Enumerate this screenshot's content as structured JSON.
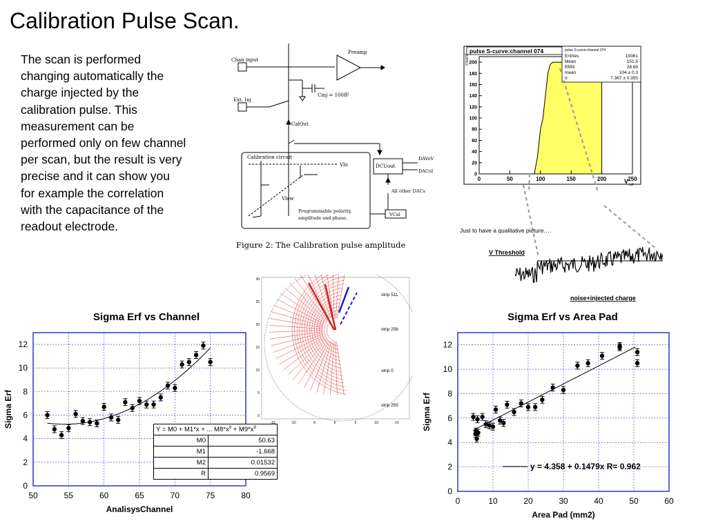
{
  "slide": {
    "title": "Calibration Pulse Scan.",
    "body": "The scan is performed changing automatically the charge injected by the calibration pulse. This measurement can be performed only on few channel per scan, but the result is very precise and it can show you for example the correlation with the capacitance of the readout electrode."
  },
  "circuit": {
    "chan_input": "Chan input",
    "preamp": "Preamp",
    "cinj": "Cinj = 100fF",
    "ext_inj": "Ext. Inj",
    "calout": "CalOut",
    "calibration_circuit": "Calibration circuit",
    "vhi": "Vhi",
    "vlow": "Vlow",
    "programmable": "Programmable polarity,",
    "amplitude_phase": "amplitude and phase.",
    "dcuout": "DCUout",
    "davov": "DAVoV",
    "dacol": "DACoI",
    "all_other_dacs": "All other DACs",
    "vcal": "VCal",
    "caption": "Figure 2: The Calibration pulse amplitude"
  },
  "scurve": {
    "title": "pulse S-curve:channel 074",
    "stats_title": "pulse S-curve:channel 074",
    "stats": [
      {
        "label": "Entries",
        "value": "19361"
      },
      {
        "label": "Mean",
        "value": "151.5"
      },
      {
        "label": "RMS",
        "value": "28.69"
      },
      {
        "label": "mean",
        "value": "104 ± 0.3"
      },
      {
        "label": "σ",
        "value": "7.367 ± 0.355"
      }
    ],
    "ylabel": "count",
    "xlabel": "V",
    "xlabel_sub": "cal",
    "x_ticks": [
      "0",
      "50",
      "100",
      "150",
      "200",
      "250"
    ],
    "y_ticks": [
      "0",
      "20",
      "40",
      "60",
      "80",
      "100",
      "120",
      "140",
      "160",
      "180",
      "200"
    ],
    "note": "Just to have a qualitative picture….",
    "threshold_label": "V Threshold",
    "noise_label": "noise+injected charge"
  },
  "sensor": {
    "strips": [
      "strip 511",
      "strip 256",
      "strip 0",
      "strip 255"
    ],
    "y_ticks": [
      "0",
      "5",
      "10",
      "15",
      "20",
      "25",
      "30"
    ],
    "x_ticks": [
      "-15",
      "-10",
      "-5",
      "0",
      "5",
      "10",
      "15"
    ]
  },
  "chart_left": {
    "title": "Sigma Erf vs Channel",
    "xlabel": "AnalisysChannel",
    "ylabel": "Sigma Erf",
    "x_ticks": [
      "50",
      "55",
      "60",
      "65",
      "70",
      "75",
      "80"
    ],
    "y_ticks": [
      "0",
      "2",
      "4",
      "6",
      "8",
      "10",
      "12"
    ],
    "fit_header": "Y = M0 + M1*x + ... M8*x",
    "fit_header_sup1": "8",
    "fit_header_mid": " + M9*x",
    "fit_header_sup2": "9",
    "fit_rows": [
      {
        "name": "M0",
        "value": "50.63"
      },
      {
        "name": "M1",
        "value": "-1.668"
      },
      {
        "name": "M2",
        "value": "0.01532"
      },
      {
        "name": "R",
        "value": "0.9569"
      }
    ]
  },
  "chart_right": {
    "title": "Sigma Erf vs Area Pad",
    "xlabel": "Area Pad (mm2)",
    "ylabel": "Sigma Erf",
    "x_ticks": [
      "0",
      "10",
      "20",
      "30",
      "40",
      "50",
      "60"
    ],
    "y_ticks": [
      "0",
      "2",
      "4",
      "6",
      "8",
      "10",
      "12"
    ],
    "fit_label": "y = 4.358 + 0.1479x   R= 0.962"
  },
  "chart_data": [
    {
      "type": "scatter",
      "title": "Sigma Erf vs Channel",
      "xlabel": "AnalisysChannel",
      "ylabel": "Sigma Erf",
      "xlim": [
        50,
        80
      ],
      "ylim": [
        0,
        13
      ],
      "x": [
        52,
        53,
        54,
        55,
        56,
        57,
        58,
        59,
        60,
        61,
        62,
        63,
        64,
        65,
        66,
        67,
        68,
        69,
        70,
        71,
        72,
        73,
        74,
        75
      ],
      "y": [
        6.0,
        4.8,
        4.3,
        4.9,
        6.1,
        5.5,
        5.4,
        5.3,
        6.7,
        5.8,
        5.6,
        7.1,
        6.6,
        7.2,
        6.9,
        6.9,
        7.5,
        8.5,
        8.3,
        10.3,
        10.5,
        11.1,
        11.9,
        10.5
      ],
      "fit": {
        "model": "polynomial",
        "M0": 50.63,
        "M1": -1.668,
        "M2": 0.01532,
        "R": 0.9569
      },
      "grid": true
    },
    {
      "type": "scatter",
      "title": "Sigma Erf vs Area Pad",
      "xlabel": "Area Pad (mm2)",
      "ylabel": "Sigma Erf",
      "xlim": [
        0,
        60
      ],
      "ylim": [
        0,
        13
      ],
      "x": [
        4.4,
        5.0,
        5.2,
        5.4,
        5.6,
        5.8,
        7,
        8,
        9,
        10,
        10.8,
        12,
        13,
        14,
        16,
        18,
        20,
        22,
        24,
        27,
        30,
        34,
        37,
        41,
        46,
        46,
        51,
        51
      ],
      "y": [
        6.1,
        4.7,
        4.9,
        4.3,
        5.9,
        4.8,
        6.1,
        5.5,
        5.4,
        5.3,
        6.7,
        5.8,
        5.6,
        7.1,
        6.5,
        7.2,
        6.9,
        6.9,
        7.5,
        8.5,
        8.3,
        10.3,
        10.5,
        11.1,
        11.8,
        11.9,
        11.4,
        10.5
      ],
      "fit": {
        "model": "linear",
        "intercept": 4.358,
        "slope": 0.1479,
        "R": 0.962
      },
      "grid": true
    },
    {
      "type": "area",
      "title": "pulse S-curve:channel 074",
      "xlabel": "Vcal",
      "ylabel": "count",
      "xlim": [
        0,
        250
      ],
      "ylim": [
        0,
        210
      ],
      "x": [
        0,
        90,
        95,
        100,
        104,
        108,
        112,
        116,
        120,
        200,
        200
      ],
      "y": [
        0,
        0,
        30,
        80,
        100,
        140,
        180,
        196,
        200,
        200,
        0
      ]
    }
  ],
  "colors": {
    "fill": "#ffff66",
    "frame": "#3333cc",
    "red": "#cc2222",
    "blue": "#1a1ad9"
  }
}
